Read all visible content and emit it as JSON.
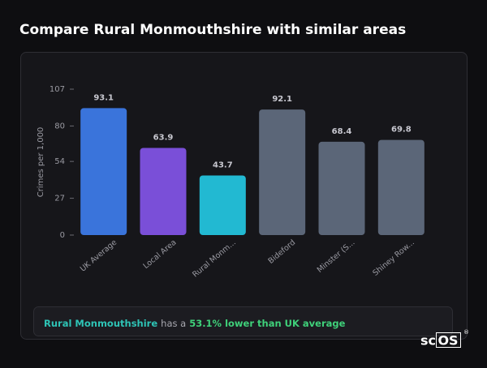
{
  "chart_data": {
    "type": "bar",
    "title": "Compare Rural Monmouthshire with similar areas",
    "y_label": "Crimes per 1,000",
    "categories": [
      "UK Average",
      "Local Area",
      "Rural Monm...",
      "Bideford",
      "Minster (S...",
      "Shiney Row..."
    ],
    "values": [
      93.1,
      63.9,
      43.7,
      92.1,
      68.4,
      69.8
    ],
    "colors": [
      "#3a74db",
      "#7a4fd8",
      "#22b9d2",
      "#5b6678",
      "#5b6678",
      "#5b6678"
    ],
    "ylim": [
      0,
      107
    ],
    "yticks": [
      0,
      27,
      54,
      80,
      107
    ],
    "grid": false
  },
  "summary": {
    "area": "Rural Monmouthshire",
    "connector": "has a",
    "comparison": "53.1% lower than UK average"
  },
  "logo": {
    "prefix": "sc",
    "boxed": "OS",
    "mark": "®"
  }
}
